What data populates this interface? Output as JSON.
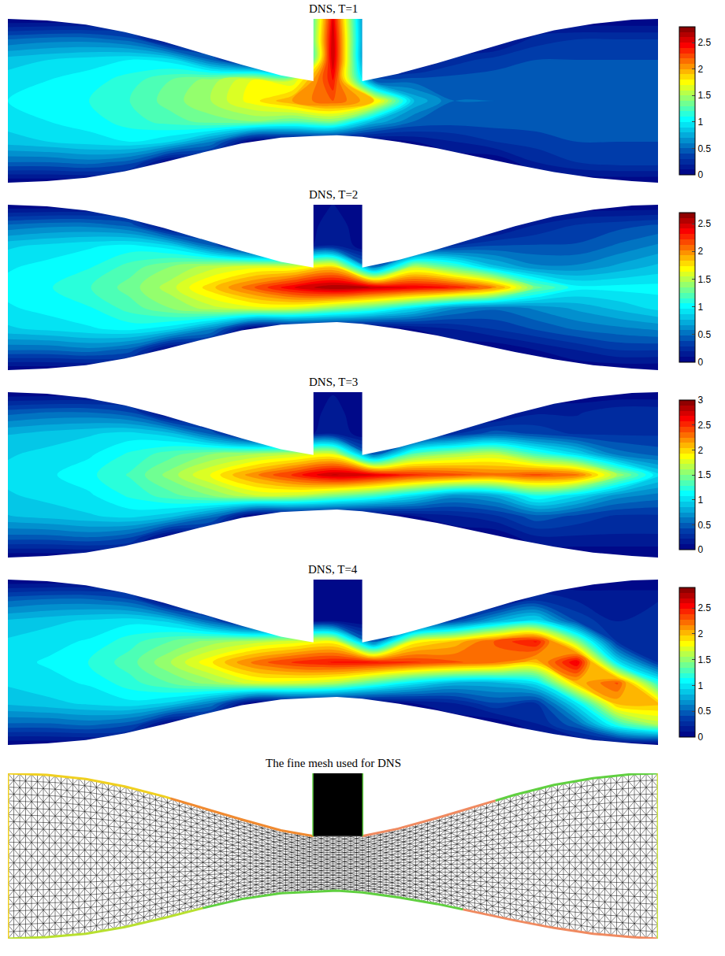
{
  "geometry": {
    "x": [
      0,
      0.6,
      1.2,
      1.8,
      2.4,
      3.0,
      3.6,
      4.2,
      4.7,
      5.06,
      5.45,
      6.0,
      6.6,
      7.2,
      7.8,
      8.4,
      9.0,
      9.6,
      10
    ],
    "top": [
      1,
      0.98,
      0.93,
      0.84,
      0.72,
      0.58,
      0.44,
      0.31,
      0.24,
      0.23,
      0.24,
      0.33,
      0.46,
      0.6,
      0.74,
      0.86,
      0.94,
      0.99,
      1
    ],
    "bottom": [
      -1,
      -0.98,
      -0.94,
      -0.86,
      -0.75,
      -0.63,
      -0.52,
      -0.45,
      -0.43,
      -0.42,
      -0.44,
      -0.5,
      -0.58,
      -0.68,
      -0.78,
      -0.87,
      -0.94,
      -0.98,
      -1
    ],
    "cavity": [
      4.7,
      5.45
    ]
  },
  "chart_data": [
    {
      "type": "contour",
      "title": "DNS, T=1",
      "xlim": [
        0,
        10
      ],
      "ylim": [
        -1,
        1
      ],
      "tick_labels": false,
      "x": [
        0,
        0.625,
        1.25,
        1.875,
        2.5,
        3.125,
        3.75,
        4.375,
        5,
        5.625,
        6.25,
        6.875,
        7.5,
        8.125,
        8.75,
        9.375,
        10
      ],
      "y": [
        -1,
        -0.75,
        -0.5,
        -0.25,
        0,
        0.25,
        0.5,
        0.75,
        1
      ],
      "z": [
        [
          0,
          0,
          0,
          0,
          0,
          0,
          0,
          0,
          0,
          0,
          0,
          0,
          0,
          0,
          0,
          0,
          0
        ],
        [
          0.5,
          0.5,
          0.55,
          0.45,
          0,
          0,
          0,
          0,
          0,
          0,
          0,
          0,
          0,
          0.2,
          0.3,
          0.35,
          0.35
        ],
        [
          0.85,
          0.9,
          0.95,
          1.0,
          0.9,
          0.6,
          0,
          0,
          0,
          0,
          0.1,
          0.2,
          0.3,
          0.35,
          0.4,
          0.4,
          0.4
        ],
        [
          0.95,
          1.0,
          1.05,
          1.15,
          1.25,
          1.35,
          1.4,
          1.3,
          1.4,
          0.8,
          0.5,
          0.45,
          0.45,
          0.45,
          0.4,
          0.4,
          0.4
        ],
        [
          1.0,
          1.05,
          1.1,
          1.2,
          1.35,
          1.5,
          1.75,
          2.0,
          2.2,
          1.9,
          0.8,
          0.5,
          0.5,
          0.5,
          0.45,
          0.4,
          0.4
        ],
        [
          0.95,
          1.0,
          1.05,
          1.15,
          1.3,
          1.45,
          1.7,
          1.6,
          2.4,
          0.5,
          0.45,
          0.45,
          0.45,
          0.45,
          0.4,
          0.4,
          0.4
        ],
        [
          0.85,
          0.9,
          0.95,
          1.0,
          0.95,
          0.5,
          0,
          0,
          2.6,
          0,
          0,
          0.25,
          0.35,
          0.4,
          0.4,
          0.4,
          0.4
        ],
        [
          0.5,
          0.55,
          0.55,
          0.45,
          0,
          0,
          0,
          0,
          2.6,
          0,
          0,
          0,
          0,
          0.25,
          0.3,
          0.3,
          0.3
        ],
        [
          0,
          0,
          0,
          0,
          0,
          0,
          0,
          0,
          2.5,
          0,
          0,
          0,
          0,
          0,
          0,
          0,
          0
        ]
      ],
      "zlim": [
        0,
        2.8
      ],
      "zticks": [
        0,
        0.5,
        1,
        1.5,
        2,
        2.5
      ]
    },
    {
      "type": "contour",
      "title": "DNS, T=2",
      "xlim": [
        0,
        10
      ],
      "ylim": [
        -1,
        1
      ],
      "tick_labels": false,
      "x": [
        0,
        0.625,
        1.25,
        1.875,
        2.5,
        3.125,
        3.75,
        4.375,
        5,
        5.625,
        6.25,
        6.875,
        7.5,
        8.125,
        8.75,
        9.375,
        10
      ],
      "y": [
        -1,
        -0.75,
        -0.5,
        -0.25,
        0,
        0.25,
        0.5,
        0.75,
        1
      ],
      "z": [
        [
          0,
          0,
          0,
          0,
          0,
          0,
          0,
          0,
          0,
          0,
          0,
          0,
          0,
          0,
          0,
          0,
          0
        ],
        [
          0.5,
          0.5,
          0.55,
          0.45,
          0,
          0,
          0,
          0,
          0,
          0,
          0,
          0,
          0,
          0.1,
          0.2,
          0.3,
          0.3
        ],
        [
          0.85,
          0.9,
          0.95,
          1.0,
          0.9,
          0.6,
          0,
          0,
          0,
          0,
          0.1,
          0.2,
          0.3,
          0.4,
          0.5,
          0.55,
          0.6
        ],
        [
          0.95,
          1.0,
          1.05,
          1.2,
          1.35,
          1.5,
          1.6,
          1.6,
          1.4,
          1.2,
          0.9,
          0.6,
          0.5,
          0.6,
          0.7,
          0.8,
          0.9
        ],
        [
          1.0,
          1.05,
          1.15,
          1.3,
          1.5,
          1.8,
          2.1,
          2.4,
          2.6,
          2.5,
          2.4,
          2.3,
          2.0,
          1.3,
          1.0,
          1.0,
          1.0
        ],
        [
          0.95,
          1.0,
          1.05,
          1.2,
          1.35,
          1.5,
          1.6,
          1.6,
          1.8,
          0.5,
          1.5,
          1.2,
          0.8,
          0.6,
          0.6,
          0.7,
          0.8
        ],
        [
          0.85,
          0.9,
          0.95,
          1.0,
          0.9,
          0.5,
          0,
          0,
          0.2,
          0,
          0,
          0.3,
          0.4,
          0.4,
          0.4,
          0.5,
          0.6
        ],
        [
          0.5,
          0.55,
          0.55,
          0.45,
          0,
          0,
          0,
          0,
          0.15,
          0,
          0,
          0,
          0,
          0.2,
          0.3,
          0.35,
          0.4
        ],
        [
          0,
          0,
          0,
          0,
          0,
          0,
          0,
          0,
          0.1,
          0,
          0,
          0,
          0,
          0,
          0,
          0,
          0
        ]
      ],
      "zlim": [
        0,
        2.7
      ],
      "zticks": [
        0,
        0.5,
        1,
        1.5,
        2,
        2.5
      ]
    },
    {
      "type": "contour",
      "title": "DNS, T=3",
      "xlim": [
        0,
        10
      ],
      "ylim": [
        -1,
        1
      ],
      "tick_labels": false,
      "x": [
        0,
        0.625,
        1.25,
        1.875,
        2.5,
        3.125,
        3.75,
        4.375,
        5,
        5.625,
        6.25,
        6.875,
        7.5,
        8.125,
        8.75,
        9.375,
        10
      ],
      "y": [
        -1,
        -0.75,
        -0.5,
        -0.25,
        0,
        0.25,
        0.5,
        0.75,
        1
      ],
      "z": [
        [
          0,
          0,
          0,
          0,
          0,
          0,
          0,
          0,
          0,
          0,
          0,
          0,
          0,
          0,
          0,
          0,
          0
        ],
        [
          0.5,
          0.5,
          0.55,
          0.45,
          0,
          0,
          0,
          0,
          0,
          0,
          0,
          0,
          0,
          0.2,
          0.2,
          0.2,
          0.2
        ],
        [
          0.85,
          0.9,
          0.95,
          1.0,
          0.9,
          0.6,
          0,
          0,
          0,
          0,
          0.1,
          0.2,
          0.3,
          0.5,
          0.4,
          0.3,
          0.3
        ],
        [
          0.95,
          1.0,
          1.05,
          1.2,
          1.35,
          1.5,
          1.7,
          1.7,
          1.5,
          1.3,
          1.0,
          0.7,
          0.8,
          1.2,
          1.0,
          0.7,
          0.6
        ],
        [
          1.0,
          1.05,
          1.15,
          1.3,
          1.55,
          1.85,
          2.2,
          2.5,
          2.8,
          2.7,
          2.5,
          2.4,
          2.3,
          2.4,
          2.3,
          1.6,
          1.0
        ],
        [
          0.95,
          1.0,
          1.05,
          1.2,
          1.35,
          1.5,
          1.6,
          1.7,
          1.8,
          0.5,
          1.4,
          1.6,
          1.7,
          1.3,
          1.0,
          0.6,
          0.5
        ],
        [
          0.85,
          0.9,
          0.95,
          1.0,
          0.9,
          0.5,
          0,
          0,
          0.2,
          0,
          0,
          0.3,
          0.5,
          0.4,
          0.3,
          0.3,
          0.3
        ],
        [
          0.5,
          0.55,
          0.55,
          0.45,
          0,
          0,
          0,
          0,
          0.15,
          0,
          0,
          0,
          0,
          0.2,
          0.2,
          0.3,
          0.3
        ],
        [
          0,
          0,
          0,
          0,
          0,
          0,
          0,
          0,
          0.1,
          0,
          0,
          0,
          0,
          0,
          0,
          0,
          0
        ]
      ],
      "zlim": [
        0,
        3
      ],
      "zticks": [
        0,
        0.5,
        1,
        1.5,
        2,
        2.5,
        3
      ]
    },
    {
      "type": "contour",
      "title": "DNS, T=4",
      "xlim": [
        0,
        10
      ],
      "ylim": [
        -1,
        1
      ],
      "tick_labels": false,
      "x": [
        0,
        0.625,
        1.25,
        1.875,
        2.5,
        3.125,
        3.75,
        4.375,
        5,
        5.625,
        6.25,
        6.875,
        7.5,
        8.125,
        8.75,
        9.375,
        10
      ],
      "y": [
        -1,
        -0.75,
        -0.5,
        -0.25,
        0,
        0.25,
        0.5,
        0.75,
        1
      ],
      "z": [
        [
          0,
          0,
          0,
          0,
          0,
          0,
          0,
          0,
          0,
          0,
          0,
          0,
          0,
          0,
          0,
          0,
          0
        ],
        [
          0.5,
          0.5,
          0.55,
          0.45,
          0,
          0,
          0,
          0,
          0,
          0,
          0,
          0,
          0,
          0.2,
          0.5,
          1.2,
          1.6
        ],
        [
          0.85,
          0.9,
          0.95,
          1.0,
          0.9,
          0.6,
          0,
          0,
          0,
          0,
          0.1,
          0.2,
          0.4,
          0.3,
          1.0,
          2.0,
          2.0
        ],
        [
          0.95,
          1.0,
          1.05,
          1.2,
          1.35,
          1.5,
          1.7,
          1.7,
          1.6,
          1.3,
          1.0,
          0.8,
          0.8,
          1.0,
          2.0,
          2.3,
          1.2
        ],
        [
          1.0,
          1.05,
          1.15,
          1.3,
          1.55,
          1.85,
          2.2,
          2.4,
          2.5,
          2.5,
          2.4,
          2.3,
          2.2,
          2.0,
          2.6,
          1.0,
          0.3
        ],
        [
          0.95,
          1.0,
          1.05,
          1.2,
          1.35,
          1.5,
          1.6,
          1.7,
          1.8,
          0.5,
          1.8,
          2.0,
          2.3,
          2.5,
          1.5,
          0.3,
          0.3
        ],
        [
          0.85,
          0.9,
          0.95,
          1.0,
          0.9,
          0.5,
          0,
          0,
          0.1,
          0,
          0,
          0.4,
          0.8,
          1.0,
          0.4,
          0.2,
          0.3
        ],
        [
          0.5,
          0.55,
          0.55,
          0.45,
          0,
          0,
          0,
          0,
          0.1,
          0,
          0,
          0,
          0,
          0.3,
          0.2,
          0.2,
          0.2
        ],
        [
          0,
          0,
          0,
          0,
          0,
          0,
          0,
          0,
          0.05,
          0,
          0,
          0,
          0,
          0,
          0,
          0,
          0
        ]
      ],
      "zlim": [
        0,
        2.9
      ],
      "zticks": [
        0,
        0.5,
        1,
        1.5,
        2,
        2.5
      ]
    },
    {
      "type": "mesh",
      "title": "The fine mesh used for DNS",
      "xlim": [
        0,
        10
      ],
      "ylim": [
        -1,
        1
      ],
      "tick_labels": false
    }
  ]
}
